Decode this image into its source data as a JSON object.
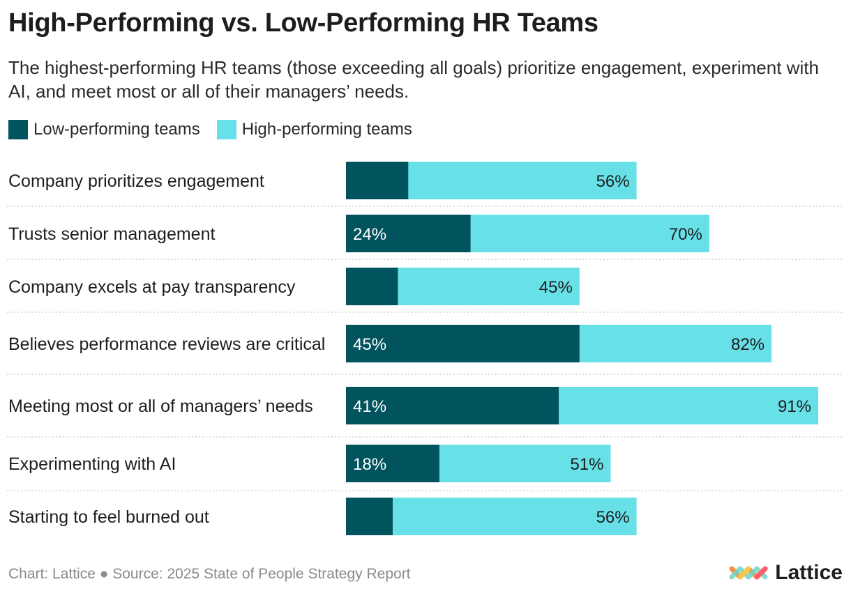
{
  "header": {
    "title": "High-Performing vs. Low-Performing HR Teams",
    "subtitle": "The highest-performing HR teams (those exceeding all goals) prioritize engagement, experiment with AI, and meet most or all of their managers’ needs."
  },
  "colors": {
    "low": "#01535d",
    "high": "#67e0e8",
    "divider": "#c8c8c8"
  },
  "chart_data": {
    "type": "bar",
    "orientation": "horizontal",
    "layout": "overlapping",
    "categories": [
      "Company prioritizes engagement",
      "Trusts senior management",
      "Company excels at pay transparency",
      "Believes performance reviews are critical",
      "Meeting most or all of managers’ needs",
      "Experimenting with AI",
      "Starting to feel burned out"
    ],
    "series": [
      {
        "name": "Low-performing teams",
        "values": [
          12,
          24,
          10,
          45,
          41,
          18,
          9
        ],
        "labels": [
          "",
          "24%",
          "",
          "45%",
          "41%",
          "18%",
          ""
        ]
      },
      {
        "name": "High-performing teams",
        "values": [
          56,
          70,
          45,
          82,
          91,
          51,
          56
        ],
        "labels": [
          "56%",
          "70%",
          "45%",
          "82%",
          "91%",
          "51%",
          "56%"
        ]
      }
    ],
    "xlim": [
      0,
      100
    ],
    "legend": "top-left"
  },
  "footer": {
    "source": "Chart: Lattice ● Source: 2025 State of People Strategy Report",
    "logo_text": "Lattice"
  }
}
